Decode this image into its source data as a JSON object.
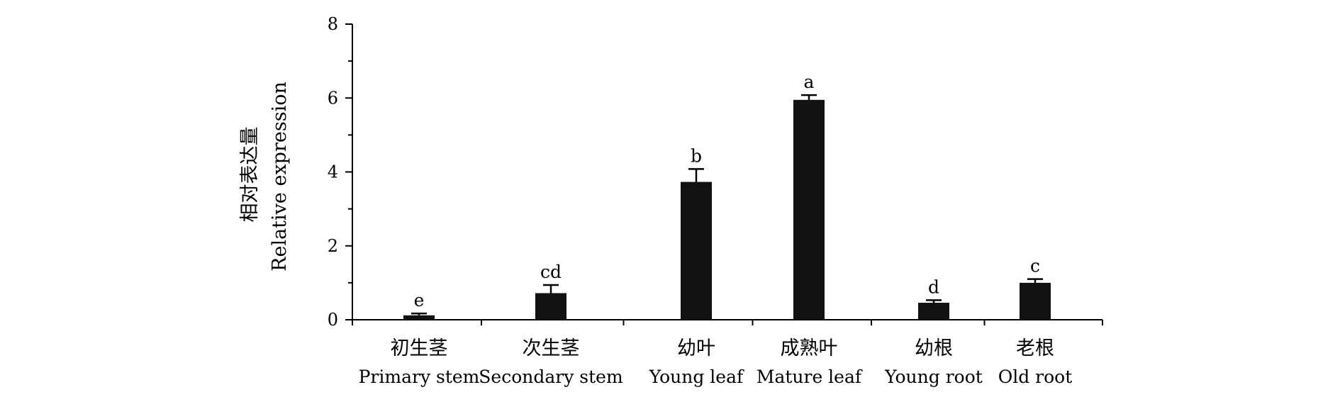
{
  "chart_data": {
    "type": "bar",
    "categories": [
      {
        "cn": "初生茎",
        "en": "Primary stem"
      },
      {
        "cn": "次生茎",
        "en": "Secondary stem"
      },
      {
        "cn": "幼叶",
        "en": "Young leaf"
      },
      {
        "cn": "成熟叶",
        "en": "Mature leaf"
      },
      {
        "cn": "幼根",
        "en": "Young root"
      },
      {
        "cn": "老根",
        "en": "Old root"
      }
    ],
    "values": [
      0.12,
      0.72,
      3.73,
      5.95,
      0.46,
      1.0
    ],
    "errors": [
      0.05,
      0.22,
      0.35,
      0.13,
      0.07,
      0.1
    ],
    "significance": [
      "e",
      "cd",
      "b",
      "a",
      "d",
      "c"
    ],
    "ylabel_cn": "相对表达量",
    "ylabel_en": "Relative expression",
    "ylim": [
      0,
      8
    ],
    "yticks": [
      0,
      2,
      4,
      6,
      8
    ],
    "bar_color": "#111111",
    "grid": false
  }
}
